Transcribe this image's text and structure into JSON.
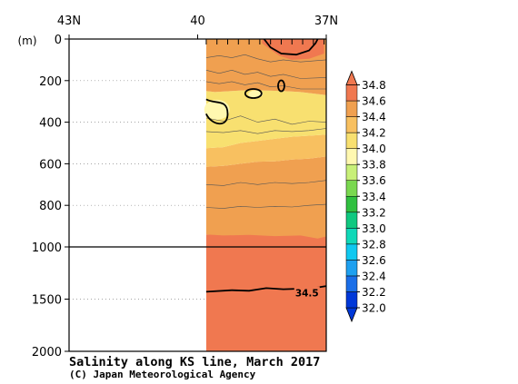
{
  "chart_data": {
    "type": "heatmap",
    "title": "Salinity along KS line, March 2017",
    "credit": "(C) Japan Meteorological Agency",
    "x_ticks": [
      {
        "label": "43N",
        "lat": 43
      },
      {
        "label": "40",
        "lat": 40
      },
      {
        "label": "37N",
        "lat": 37
      }
    ],
    "x_range_lat": [
      43,
      37
    ],
    "data_lat_range": [
      39.8,
      37.0
    ],
    "station_lats": [
      39.8,
      39.55,
      39.3,
      39.05,
      38.8,
      38.55,
      38.3,
      38.05,
      37.8,
      37.55,
      37.3,
      37.05
    ],
    "y_unit": "(m)",
    "y_ticks_upper": [
      0,
      200,
      400,
      600,
      800,
      1000
    ],
    "y_ticks_lower": [
      1000,
      1500,
      2000
    ],
    "y_range_upper": [
      0,
      1000
    ],
    "y_range_lower": [
      1000,
      2000
    ],
    "colorbar": {
      "levels": [
        "32.0",
        "32.2",
        "32.4",
        "32.6",
        "32.8",
        "33.0",
        "33.2",
        "33.4",
        "33.6",
        "33.8",
        "34.0",
        "34.2",
        "34.4",
        "34.6",
        "34.8"
      ],
      "colors": [
        "#0038d8",
        "#1a6ee8",
        "#1ea0f0",
        "#10c8f0",
        "#10d8b8",
        "#10c880",
        "#30c040",
        "#7ad850",
        "#c8f078",
        "#fff8b0",
        "#f8e070",
        "#f8c060",
        "#f0a050",
        "#f07850"
      ]
    },
    "bands": [
      {
        "range": "34.4-34.6",
        "color": "#f07850",
        "region": "0-50m near 38N; 950-2000m"
      },
      {
        "range": "34.2-34.4",
        "color": "#f0a050",
        "region": "0-250m and 620-950m"
      },
      {
        "range": "34.0-34.2",
        "color": "#f8c060",
        "region": "520-620m"
      },
      {
        "range": "33.8-34.0",
        "color": "#f8e070",
        "region": "250-520m"
      },
      {
        "range": "33.6-33.8",
        "color": "#fff8b0",
        "region": "pockets near 300m at 39.7N and 38.6N"
      }
    ],
    "labels": [
      {
        "text": "34.5",
        "depth_m": 1440,
        "lat": 37.45
      }
    ]
  }
}
